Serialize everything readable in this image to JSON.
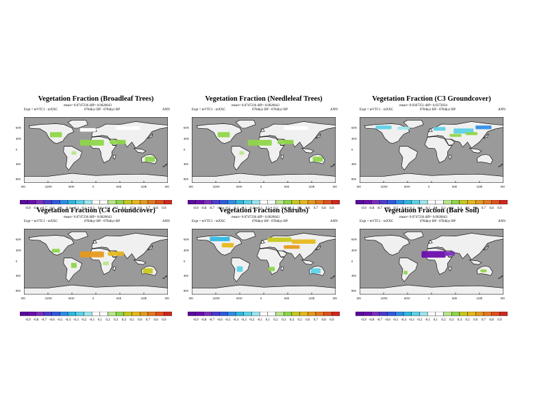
{
  "common": {
    "expt": "Expt = teVTC1 - teXXC",
    "season": "ANN",
    "period": "0784kyr BP - 0784kyr BP",
    "lon_ticks": [
      "180",
      "120W",
      "60W",
      "0",
      "60E",
      "120E",
      "180"
    ],
    "lat_ticks": [
      "60N",
      "40N",
      "0",
      "40S",
      "80S"
    ],
    "colorbar_labels": [
      "-0.9",
      "-0.8",
      "-0.7",
      "-0.6",
      "-0.5",
      "-0.4",
      "-0.3",
      "-0.2",
      "-0.1",
      "0.1",
      "0.2",
      "0.3",
      "0.4",
      "0.5",
      "0.6",
      "0.7",
      "0.8",
      "0.9"
    ],
    "colorbar_colors": [
      "#6a0dad",
      "#7b2fbe",
      "#4b3cd1",
      "#2f5be0",
      "#2f8de8",
      "#2fb8e0",
      "#5ed1e8",
      "#9be6ef",
      "#ffffff",
      "#ffffff",
      "#b8e68a",
      "#8fd64a",
      "#c8c81e",
      "#e6b81e",
      "#e69a1e",
      "#e6781e",
      "#e0501e",
      "#d0281e"
    ],
    "ocean_color": "#9a9a9a",
    "land_color": "#f0f0f0"
  },
  "panels": [
    {
      "title": "Vegetation Fraction (Broadleaf Trees)",
      "stats": "mean= 0.0747236  diff= 0.0020643",
      "anomalies": [
        {
          "lon": -100,
          "lat": 42,
          "dlon": 30,
          "dlat": 14,
          "value": 0.3
        },
        {
          "lon": -10,
          "lat": 20,
          "dlon": 60,
          "dlat": 16,
          "value": 0.3
        },
        {
          "lon": 55,
          "lat": 22,
          "dlon": 40,
          "dlat": 12,
          "value": 0.3
        },
        {
          "lon": -55,
          "lat": -8,
          "dlon": 12,
          "dlat": 10,
          "value": 0.2
        },
        {
          "lon": 135,
          "lat": -25,
          "dlon": 25,
          "dlat": 14,
          "value": 0.3
        },
        {
          "lon": 80,
          "lat": 60,
          "dlon": 60,
          "dlat": 10,
          "value": 0.1
        },
        {
          "lon": -20,
          "lat": 55,
          "dlon": 40,
          "dlat": 10,
          "value": 0.1
        }
      ]
    },
    {
      "title": "Vegetation Fraction (Needleleaf Trees)",
      "stats": "mean= 0.0747236  diff= 0.0020643",
      "anomalies": [
        {
          "lon": -100,
          "lat": 42,
          "dlon": 30,
          "dlat": 14,
          "value": 0.3
        },
        {
          "lon": -10,
          "lat": 20,
          "dlon": 60,
          "dlat": 16,
          "value": 0.3
        },
        {
          "lon": 55,
          "lat": 22,
          "dlon": 40,
          "dlat": 12,
          "value": 0.3
        },
        {
          "lon": -55,
          "lat": -8,
          "dlon": 12,
          "dlat": 10,
          "value": 0.2
        },
        {
          "lon": 135,
          "lat": -25,
          "dlon": 25,
          "dlat": 14,
          "value": 0.3
        },
        {
          "lon": 80,
          "lat": 60,
          "dlon": 60,
          "dlat": 10,
          "value": 0.1
        }
      ]
    },
    {
      "title": "Vegetation Fraction (C3 Groundcover)",
      "stats": "mean= 0.0367351  diff= 0.0372634",
      "anomalies": [
        {
          "lon": -120,
          "lat": 62,
          "dlon": 40,
          "dlat": 10,
          "value": -0.3
        },
        {
          "lon": -70,
          "lat": 60,
          "dlon": 30,
          "dlat": 8,
          "value": -0.2
        },
        {
          "lon": 20,
          "lat": 58,
          "dlon": 30,
          "dlat": 10,
          "value": -0.3
        },
        {
          "lon": 80,
          "lat": 52,
          "dlon": 50,
          "dlat": 14,
          "value": -0.3
        },
        {
          "lon": 130,
          "lat": 62,
          "dlon": 40,
          "dlat": 10,
          "value": -0.5
        },
        {
          "lon": 60,
          "lat": 40,
          "dlon": 30,
          "dlat": 8,
          "value": 0.3
        },
        {
          "lon": 100,
          "lat": 45,
          "dlon": 30,
          "dlat": 8,
          "value": 0.3
        }
      ]
    },
    {
      "title": "Vegetation Fraction (C4 Groundcover)",
      "stats": "mean= 0.0747236  diff= 0.0020643",
      "anomalies": [
        {
          "lon": -10,
          "lat": 20,
          "dlon": 60,
          "dlat": 16,
          "value": 0.6
        },
        {
          "lon": 50,
          "lat": 22,
          "dlon": 40,
          "dlat": 12,
          "value": 0.5
        },
        {
          "lon": -100,
          "lat": 30,
          "dlon": 20,
          "dlat": 10,
          "value": 0.3
        },
        {
          "lon": -55,
          "lat": -10,
          "dlon": 14,
          "dlat": 14,
          "value": 0.3
        },
        {
          "lon": 130,
          "lat": -25,
          "dlon": 25,
          "dlat": 14,
          "value": 0.4
        },
        {
          "lon": 25,
          "lat": -5,
          "dlon": 15,
          "dlat": 10,
          "value": 0.2
        }
      ]
    },
    {
      "title": "Vegetation Fraction (Shrubs)",
      "stats": "mean= 0.0747236  diff= 0.0020643",
      "anomalies": [
        {
          "lon": -110,
          "lat": 62,
          "dlon": 50,
          "dlat": 12,
          "value": -0.4
        },
        {
          "lon": -90,
          "lat": 45,
          "dlon": 30,
          "dlat": 12,
          "value": 0.5
        },
        {
          "lon": 40,
          "lat": 60,
          "dlon": 60,
          "dlat": 12,
          "value": 0.4
        },
        {
          "lon": 100,
          "lat": 55,
          "dlon": 60,
          "dlat": 12,
          "value": 0.5
        },
        {
          "lon": 70,
          "lat": 40,
          "dlon": 40,
          "dlat": 10,
          "value": 0.6
        },
        {
          "lon": -60,
          "lat": -20,
          "dlon": 15,
          "dlat": 15,
          "value": -0.3
        },
        {
          "lon": 130,
          "lat": -25,
          "dlon": 25,
          "dlat": 14,
          "value": -0.3
        },
        {
          "lon": 20,
          "lat": -20,
          "dlon": 15,
          "dlat": 12,
          "value": 0.3
        }
      ]
    },
    {
      "title": "Vegetation Fraction (Bare Soil)",
      "stats": "mean= 0.0747236  diff= 0.0020643",
      "anomalies": [
        {
          "lon": 5,
          "lat": 20,
          "dlon": 60,
          "dlat": 18,
          "value": -0.9
        },
        {
          "lon": 45,
          "lat": 22,
          "dlon": 25,
          "dlat": 12,
          "value": -0.8
        },
        {
          "lon": -65,
          "lat": -30,
          "dlon": 10,
          "dlat": 10,
          "value": 0.3
        },
        {
          "lon": 130,
          "lat": -25,
          "dlon": 15,
          "dlat": 8,
          "value": 0.3
        }
      ]
    }
  ]
}
